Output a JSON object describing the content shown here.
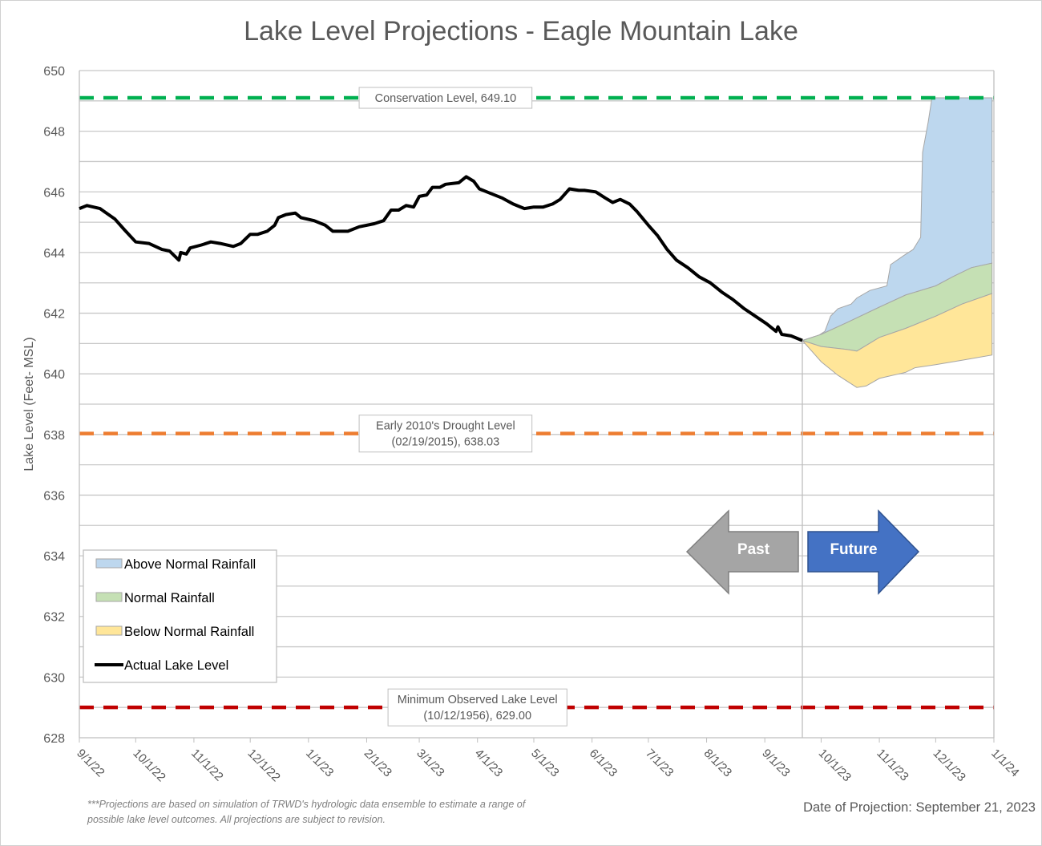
{
  "chart_data": {
    "type": "area",
    "title": "Lake Level Projections - Eagle Mountain Lake",
    "ylabel": "Lake Level (Feet- MSL)",
    "xlabel": "",
    "ylim": [
      628,
      650
    ],
    "yticks": [
      628,
      630,
      632,
      634,
      636,
      638,
      640,
      642,
      644,
      646,
      648,
      650
    ],
    "xlim": [
      "2022-09-01",
      "2024-01-01"
    ],
    "xticks": [
      {
        "date": "2022-09-01",
        "label": "9/1/22"
      },
      {
        "date": "2022-10-01",
        "label": "10/1/22"
      },
      {
        "date": "2022-11-01",
        "label": "11/1/22"
      },
      {
        "date": "2022-12-01",
        "label": "12/1/22"
      },
      {
        "date": "2023-01-01",
        "label": "1/1/23"
      },
      {
        "date": "2023-02-01",
        "label": "2/1/23"
      },
      {
        "date": "2023-03-01",
        "label": "3/1/23"
      },
      {
        "date": "2023-04-01",
        "label": "4/1/23"
      },
      {
        "date": "2023-05-01",
        "label": "5/1/23"
      },
      {
        "date": "2023-06-01",
        "label": "6/1/23"
      },
      {
        "date": "2023-07-01",
        "label": "7/1/23"
      },
      {
        "date": "2023-08-01",
        "label": "8/1/23"
      },
      {
        "date": "2023-09-01",
        "label": "9/1/23"
      },
      {
        "date": "2023-10-01",
        "label": "10/1/23"
      },
      {
        "date": "2023-11-01",
        "label": "11/1/23"
      },
      {
        "date": "2023-12-01",
        "label": "12/1/23"
      },
      {
        "date": "2024-01-01",
        "label": "1/1/24"
      }
    ],
    "grid": true,
    "legend_placement": "bottom-left",
    "actual": {
      "name": "Actual Lake Level",
      "color": "#000000",
      "points": [
        [
          "2022-09-01",
          645.45
        ],
        [
          "2022-09-05",
          645.55
        ],
        [
          "2022-09-12",
          645.45
        ],
        [
          "2022-09-20",
          645.1
        ],
        [
          "2022-09-25",
          644.75
        ],
        [
          "2022-10-01",
          644.35
        ],
        [
          "2022-10-08",
          644.3
        ],
        [
          "2022-10-15",
          644.1
        ],
        [
          "2022-10-19",
          644.05
        ],
        [
          "2022-10-24",
          643.75
        ],
        [
          "2022-10-25",
          644.0
        ],
        [
          "2022-10-28",
          643.95
        ],
        [
          "2022-10-30",
          644.15
        ],
        [
          "2022-11-05",
          644.25
        ],
        [
          "2022-11-10",
          644.35
        ],
        [
          "2022-11-15",
          644.3
        ],
        [
          "2022-11-22",
          644.2
        ],
        [
          "2022-11-26",
          644.3
        ],
        [
          "2022-12-01",
          644.6
        ],
        [
          "2022-12-05",
          644.6
        ],
        [
          "2022-12-10",
          644.7
        ],
        [
          "2022-12-14",
          644.9
        ],
        [
          "2022-12-16",
          645.15
        ],
        [
          "2022-12-20",
          645.25
        ],
        [
          "2022-12-25",
          645.3
        ],
        [
          "2022-12-28",
          645.15
        ],
        [
          "2023-01-04",
          645.05
        ],
        [
          "2023-01-10",
          644.9
        ],
        [
          "2023-01-14",
          644.7
        ],
        [
          "2023-01-22",
          644.7
        ],
        [
          "2023-01-28",
          644.85
        ],
        [
          "2023-02-05",
          644.95
        ],
        [
          "2023-02-10",
          645.05
        ],
        [
          "2023-02-14",
          645.4
        ],
        [
          "2023-02-18",
          645.4
        ],
        [
          "2023-02-22",
          645.55
        ],
        [
          "2023-02-26",
          645.5
        ],
        [
          "2023-03-01",
          645.85
        ],
        [
          "2023-03-05",
          645.9
        ],
        [
          "2023-03-08",
          646.15
        ],
        [
          "2023-03-12",
          646.15
        ],
        [
          "2023-03-15",
          646.25
        ],
        [
          "2023-03-22",
          646.3
        ],
        [
          "2023-03-26",
          646.5
        ],
        [
          "2023-03-30",
          646.35
        ],
        [
          "2023-04-02",
          646.1
        ],
        [
          "2023-04-08",
          645.95
        ],
        [
          "2023-04-14",
          645.8
        ],
        [
          "2023-04-20",
          645.6
        ],
        [
          "2023-04-26",
          645.45
        ],
        [
          "2023-05-01",
          645.5
        ],
        [
          "2023-05-06",
          645.5
        ],
        [
          "2023-05-11",
          645.6
        ],
        [
          "2023-05-15",
          645.75
        ],
        [
          "2023-05-20",
          646.1
        ],
        [
          "2023-05-25",
          646.05
        ],
        [
          "2023-05-28",
          646.05
        ],
        [
          "2023-06-03",
          646.0
        ],
        [
          "2023-06-08",
          645.8
        ],
        [
          "2023-06-12",
          645.65
        ],
        [
          "2023-06-16",
          645.75
        ],
        [
          "2023-06-21",
          645.6
        ],
        [
          "2023-06-25",
          645.35
        ],
        [
          "2023-07-01",
          644.9
        ],
        [
          "2023-07-06",
          644.55
        ],
        [
          "2023-07-11",
          644.1
        ],
        [
          "2023-07-16",
          643.75
        ],
        [
          "2023-07-22",
          643.5
        ],
        [
          "2023-07-28",
          643.2
        ],
        [
          "2023-08-03",
          643.0
        ],
        [
          "2023-08-09",
          642.7
        ],
        [
          "2023-08-15",
          642.45
        ],
        [
          "2023-08-21",
          642.15
        ],
        [
          "2023-08-27",
          641.9
        ],
        [
          "2023-09-02",
          641.65
        ],
        [
          "2023-09-07",
          641.4
        ],
        [
          "2023-09-08",
          641.55
        ],
        [
          "2023-09-10",
          641.3
        ],
        [
          "2023-09-15",
          641.25
        ],
        [
          "2023-09-21",
          641.1
        ]
      ]
    },
    "projection_start": "2023-09-21",
    "bands": [
      {
        "name": "Above Normal Rainfall",
        "color": "#BDD7EE",
        "upper": [
          [
            "2023-09-21",
            641.1
          ],
          [
            "2023-09-28",
            641.2
          ],
          [
            "2023-10-03",
            641.4
          ],
          [
            "2023-10-06",
            641.9
          ],
          [
            "2023-10-10",
            642.15
          ],
          [
            "2023-10-17",
            642.3
          ],
          [
            "2023-10-20",
            642.5
          ],
          [
            "2023-10-27",
            642.75
          ],
          [
            "2023-11-05",
            642.9
          ],
          [
            "2023-11-07",
            643.6
          ],
          [
            "2023-11-14",
            643.9
          ],
          [
            "2023-11-19",
            644.1
          ],
          [
            "2023-11-23",
            644.5
          ],
          [
            "2023-11-24",
            647.3
          ],
          [
            "2023-11-27",
            648.3
          ],
          [
            "2023-11-29",
            649.1
          ],
          [
            "2023-12-31",
            649.1
          ]
        ]
      },
      {
        "name": "Normal Rainfall",
        "color": "#C5E0B4",
        "upper": [
          [
            "2023-09-21",
            641.1
          ],
          [
            "2023-10-01",
            641.3
          ],
          [
            "2023-10-15",
            641.7
          ],
          [
            "2023-11-01",
            642.2
          ],
          [
            "2023-11-15",
            642.6
          ],
          [
            "2023-12-01",
            642.9
          ],
          [
            "2023-12-10",
            643.2
          ],
          [
            "2023-12-20",
            643.5
          ],
          [
            "2023-12-31",
            643.65
          ]
        ]
      },
      {
        "name": "Below Normal Rainfall",
        "color": "#FFE699",
        "upper": [
          [
            "2023-09-21",
            641.1
          ],
          [
            "2023-10-01",
            640.9
          ],
          [
            "2023-10-15",
            640.8
          ],
          [
            "2023-10-20",
            640.75
          ],
          [
            "2023-11-01",
            641.2
          ],
          [
            "2023-11-15",
            641.5
          ],
          [
            "2023-12-01",
            641.9
          ],
          [
            "2023-12-15",
            642.3
          ],
          [
            "2023-12-31",
            642.65
          ]
        ],
        "lower": [
          [
            "2023-09-21",
            641.1
          ],
          [
            "2023-10-01",
            640.4
          ],
          [
            "2023-10-10",
            639.95
          ],
          [
            "2023-10-20",
            639.55
          ],
          [
            "2023-10-25",
            639.6
          ],
          [
            "2023-11-01",
            639.85
          ],
          [
            "2023-11-15",
            640.05
          ],
          [
            "2023-11-20",
            640.2
          ],
          [
            "2023-12-01",
            640.3
          ],
          [
            "2023-12-15",
            640.45
          ],
          [
            "2023-12-31",
            640.62
          ]
        ]
      }
    ],
    "reference_lines": [
      {
        "value": 649.1,
        "color": "#00B050",
        "label_lines": [
          "Conservation Level, 649.10"
        ],
        "label_date": "2023-03-15"
      },
      {
        "value": 638.03,
        "color": "#ED7D31",
        "label_lines": [
          "Early 2010's Drought Level",
          "(02/19/2015), 638.03"
        ],
        "label_date": "2023-03-15"
      },
      {
        "value": 629.0,
        "color": "#C00000",
        "label_lines": [
          "Minimum Observed Lake Level",
          "(10/12/1956), 629.00"
        ],
        "label_date": "2023-04-01"
      }
    ],
    "legend": [
      {
        "label": "Above Normal Rainfall",
        "kind": "patch",
        "color": "#BDD7EE"
      },
      {
        "label": "Normal Rainfall",
        "kind": "patch",
        "color": "#C5E0B4"
      },
      {
        "label": "Below Normal Rainfall",
        "kind": "patch",
        "color": "#FFE699"
      },
      {
        "label": "Actual Lake Level",
        "kind": "line",
        "color": "#000000"
      }
    ],
    "arrows": {
      "past": {
        "label": "Past",
        "color": "#A5A5A5"
      },
      "future": {
        "label": "Future",
        "color": "#4472C4"
      }
    }
  },
  "footnote": "***Projections are based on simulation of TRWD's hydrologic data ensemble to estimate a range of possible lake level outcomes.  All projections are subject to revision.",
  "projection_date": "Date of Projection: September 21, 2023"
}
